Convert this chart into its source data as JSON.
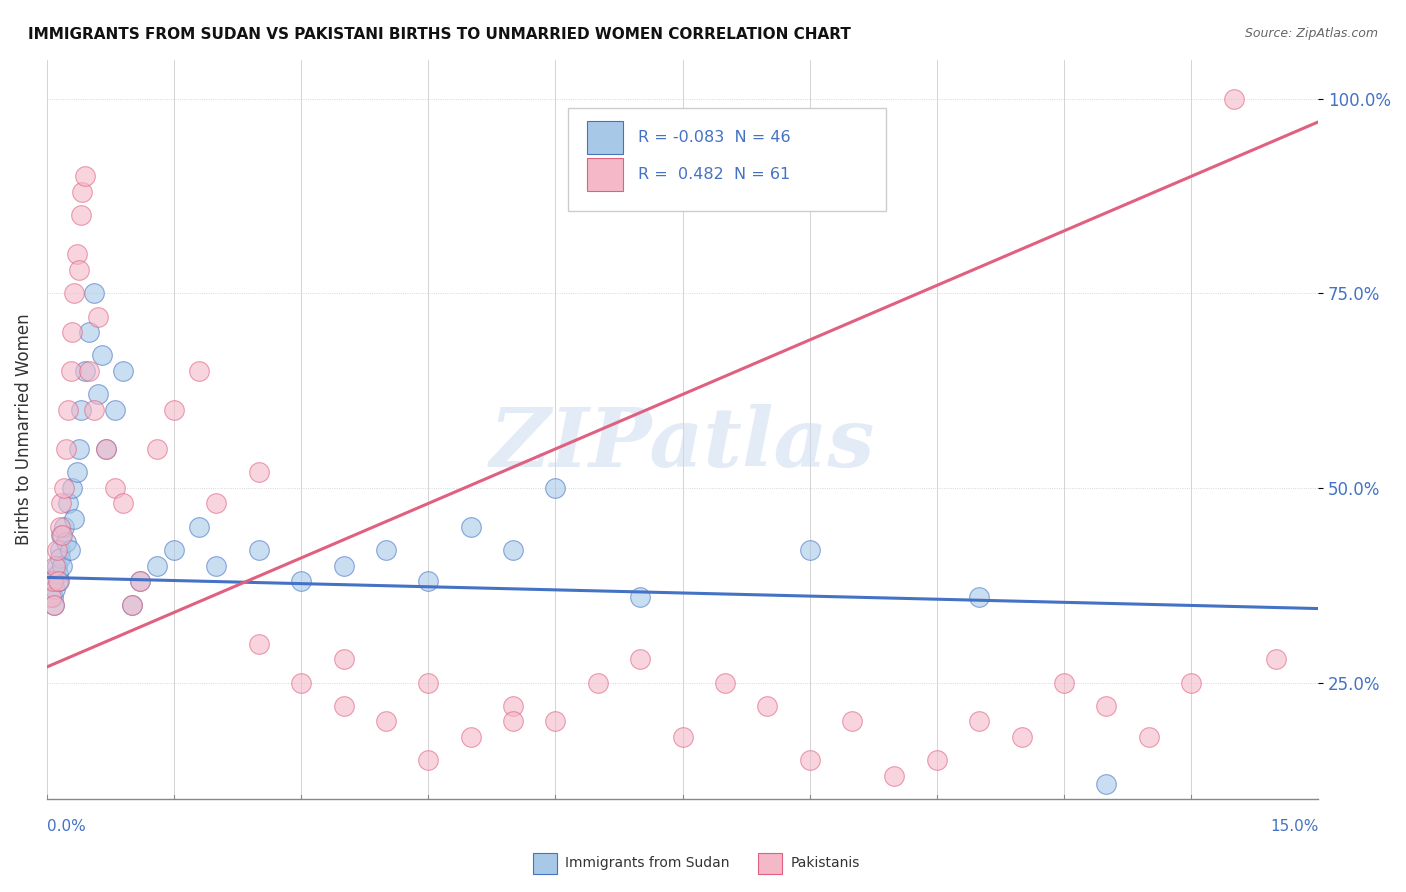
{
  "title": "IMMIGRANTS FROM SUDAN VS PAKISTANI BIRTHS TO UNMARRIED WOMEN CORRELATION CHART",
  "source": "Source: ZipAtlas.com",
  "ylabel": "Births to Unmarried Women",
  "x_min": 0.0,
  "x_max": 15.0,
  "y_min": 10.0,
  "y_max": 105.0,
  "y_ticks": [
    25.0,
    50.0,
    75.0,
    100.0
  ],
  "y_tick_labels": [
    "25.0%",
    "50.0%",
    "75.0%",
    "100.0%"
  ],
  "color_blue": "#a8c8e8",
  "color_pink": "#f4b8c8",
  "color_blue_line": "#4472c4",
  "color_pink_line": "#e06080",
  "color_blue_text": "#4472c4",
  "watermark_text": "ZIPatlas",
  "blue_x": [
    0.05,
    0.07,
    0.08,
    0.1,
    0.12,
    0.13,
    0.14,
    0.15,
    0.16,
    0.17,
    0.18,
    0.2,
    0.22,
    0.25,
    0.27,
    0.3,
    0.32,
    0.35,
    0.38,
    0.4,
    0.45,
    0.5,
    0.55,
    0.6,
    0.65,
    0.7,
    0.8,
    0.9,
    1.0,
    1.1,
    1.3,
    1.5,
    1.8,
    2.0,
    2.5,
    3.0,
    3.5,
    4.0,
    4.5,
    5.0,
    5.5,
    6.0,
    7.0,
    9.0,
    11.0,
    12.5
  ],
  "blue_y": [
    38,
    36,
    35,
    37,
    40,
    39,
    38,
    42,
    41,
    44,
    40,
    45,
    43,
    48,
    42,
    50,
    46,
    52,
    55,
    60,
    65,
    70,
    75,
    62,
    67,
    55,
    60,
    65,
    35,
    38,
    40,
    42,
    45,
    40,
    42,
    38,
    40,
    42,
    38,
    45,
    42,
    50,
    36,
    42,
    36,
    12
  ],
  "pink_x": [
    0.05,
    0.07,
    0.08,
    0.1,
    0.12,
    0.13,
    0.15,
    0.17,
    0.18,
    0.2,
    0.22,
    0.25,
    0.28,
    0.3,
    0.32,
    0.35,
    0.38,
    0.4,
    0.42,
    0.45,
    0.5,
    0.55,
    0.6,
    0.7,
    0.8,
    0.9,
    1.0,
    1.1,
    1.3,
    1.5,
    1.8,
    2.0,
    2.5,
    3.0,
    3.5,
    4.0,
    4.5,
    5.0,
    5.5,
    6.0,
    7.0,
    8.0,
    9.0,
    10.0,
    11.0,
    12.0,
    13.0,
    14.0,
    2.5,
    3.5,
    4.5,
    5.5,
    6.5,
    7.5,
    8.5,
    9.5,
    10.5,
    11.5,
    12.5,
    13.5,
    14.5
  ],
  "pink_y": [
    36,
    38,
    35,
    40,
    42,
    38,
    45,
    48,
    44,
    50,
    55,
    60,
    65,
    70,
    75,
    80,
    78,
    85,
    88,
    90,
    65,
    60,
    72,
    55,
    50,
    48,
    35,
    38,
    55,
    60,
    65,
    48,
    52,
    25,
    28,
    20,
    25,
    18,
    22,
    20,
    28,
    25,
    15,
    13,
    20,
    25,
    18,
    100,
    30,
    22,
    15,
    20,
    25,
    18,
    22,
    20,
    15,
    18,
    22,
    25,
    28
  ],
  "legend_items": [
    {
      "label": "R = -0.083  N = 46",
      "color": "#a8c8e8"
    },
    {
      "label": "R =  0.482  N = 61",
      "color": "#f4b8c8"
    }
  ],
  "bottom_legend": [
    {
      "label": "Immigrants from Sudan",
      "color": "#a8c8e8"
    },
    {
      "label": "Pakistanis",
      "color": "#f4b8c8"
    }
  ]
}
